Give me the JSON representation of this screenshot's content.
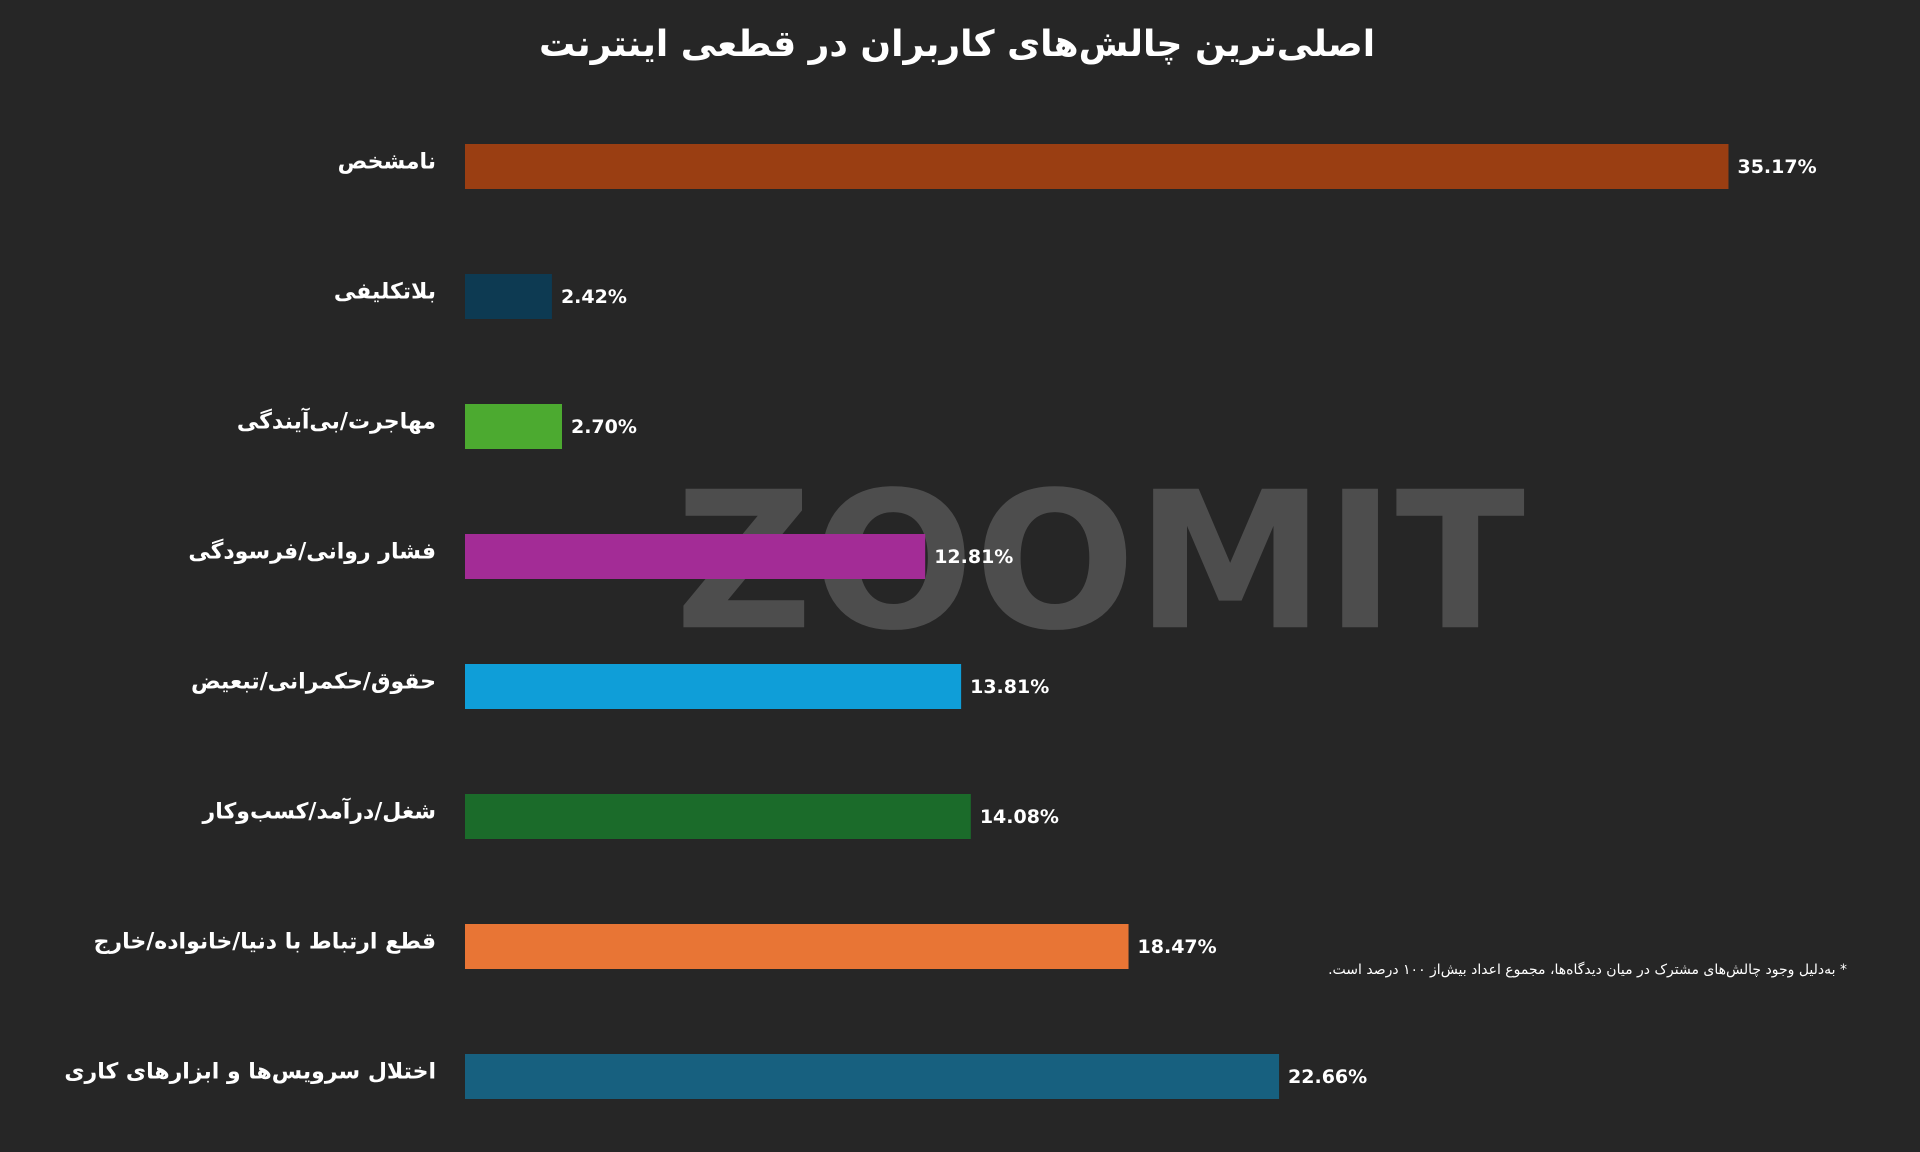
{
  "chart_data": {
    "type": "bar",
    "orientation": "horizontal",
    "title": "اصلی‌ترین چالش‌های کاربران در قطعی اینترنت",
    "categories": [
      "نامشخص",
      "بلاتکلیفی",
      "مهاجرت/بی‌آیندگی",
      "فشار روانی/فرسودگی",
      "حقوق/حکمرانی/تبعیض",
      "شغل/درآمد/کسب‌وکار",
      "قطع ارتباط با دنیا/خانواده/خارج",
      "اختلال سرویس‌ها و ابزارهای کاری"
    ],
    "values": [
      35.17,
      2.42,
      2.7,
      12.81,
      13.81,
      14.08,
      18.47,
      22.66
    ],
    "value_labels": [
      "35.17%",
      "2.42%",
      "2.70%",
      "12.81%",
      "13.81%",
      "14.08%",
      "18.47%",
      "22.66%"
    ],
    "colors": [
      "#9a3e12",
      "#0d3a52",
      "#4caa30",
      "#a32c96",
      "#0f9ed8",
      "#1b6b2a",
      "#e87535",
      "#17607f"
    ],
    "xlim": [
      0,
      40
    ],
    "note": "* به‌دلیل وجود چالش‌های مشترک در میان دیدگاه‌ها، مجموع اعداد بیش‌از ۱۰۰ درصد است.",
    "watermark": "ZOOMIT"
  }
}
